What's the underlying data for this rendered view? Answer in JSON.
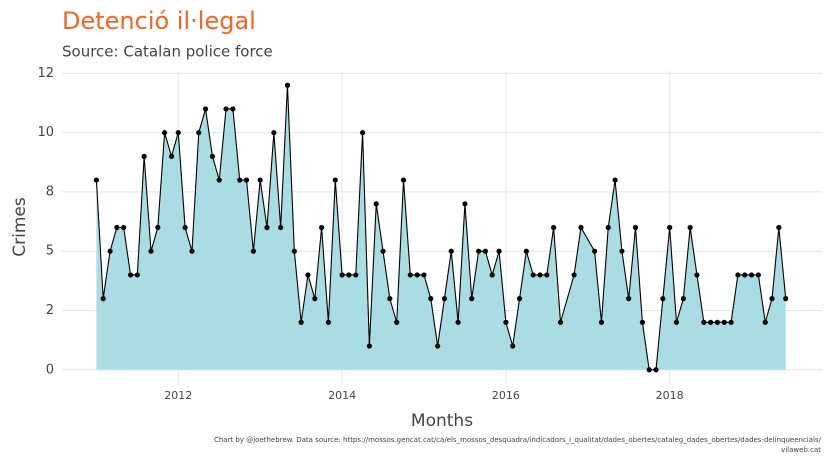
{
  "chart_data": {
    "type": "area",
    "title": "Detenció il·legal",
    "subtitle": "Source: Catalan police force",
    "x_label": "Months",
    "y_label": "Crimes",
    "caption": [
      "Chart by @joethebrew. Data source: https://mossos.gencat.cat/ca/els_mossos_desquadra/indicadors_i_qualitat/dades_obertes/cataleg_dades_obertes/dades-delinqueencials/",
      "vilaweb.cat"
    ],
    "x": [
      2011,
      2011.083,
      2011.167,
      2011.25,
      2011.333,
      2011.417,
      2011.5,
      2011.583,
      2011.667,
      2011.75,
      2011.833,
      2011.917,
      2012,
      2012.083,
      2012.167,
      2012.25,
      2012.333,
      2012.417,
      2012.5,
      2012.583,
      2012.667,
      2012.75,
      2012.833,
      2012.917,
      2013,
      2013.083,
      2013.167,
      2013.25,
      2013.333,
      2013.417,
      2013.5,
      2013.583,
      2013.667,
      2013.75,
      2013.833,
      2013.917,
      2014,
      2014.083,
      2014.167,
      2014.25,
      2014.333,
      2014.417,
      2014.5,
      2014.583,
      2014.667,
      2014.75,
      2014.833,
      2014.917,
      2015,
      2015.083,
      2015.167,
      2015.25,
      2015.333,
      2015.417,
      2015.5,
      2015.583,
      2015.667,
      2015.75,
      2015.833,
      2015.917,
      2016,
      2016.083,
      2016.167,
      2016.25,
      2016.333,
      2016.417,
      2016.5,
      2016.583,
      2016.667,
      2016.833,
      2016.917,
      2017.083,
      2017.167,
      2017.25,
      2017.333,
      2017.417,
      2017.5,
      2017.583,
      2017.667,
      2017.75,
      2017.833,
      2017.917,
      2018,
      2018.083,
      2018.167,
      2018.25,
      2018.333,
      2018.417,
      2018.5,
      2018.583,
      2018.667,
      2018.75,
      2018.833,
      2018.917,
      2019,
      2019.083,
      2019.167,
      2019.25,
      2019.333,
      2019.417
    ],
    "values": [
      8,
      3,
      5,
      6,
      6,
      4,
      4,
      9,
      5,
      6,
      10,
      9,
      10,
      6,
      5,
      10,
      11,
      9,
      8,
      11,
      11,
      8,
      8,
      5,
      8,
      6,
      10,
      6,
      12,
      5,
      2,
      4,
      3,
      6,
      2,
      8,
      4,
      4,
      4,
      10,
      1,
      7,
      5,
      3,
      2,
      8,
      4,
      4,
      4,
      3,
      1,
      3,
      5,
      2,
      7,
      3,
      5,
      5,
      4,
      5,
      2,
      1,
      3,
      5,
      4,
      4,
      4,
      6,
      2,
      4,
      6,
      5,
      2,
      6,
      8,
      5,
      3,
      6,
      2,
      0,
      0,
      3,
      6,
      2,
      3,
      6,
      4,
      2,
      2,
      2,
      2,
      2,
      4,
      4,
      4,
      4,
      2,
      3,
      6,
      3
    ],
    "color": "#000000",
    "fill_color": "#aadde3",
    "title_color": "#f26522",
    "xlim": [
      2010.58,
      2019.86
    ],
    "xticks": [
      2012,
      2014,
      2016,
      2018
    ],
    "ylim": [
      -0.6,
      12.6
    ],
    "yticks": [
      0,
      {
        "value": 2.5,
        "label": "2"
      },
      5,
      {
        "value": 7.5,
        "label": "8"
      },
      10,
      {
        "value": 12.5,
        "label": "12"
      }
    ],
    "grid": true
  }
}
